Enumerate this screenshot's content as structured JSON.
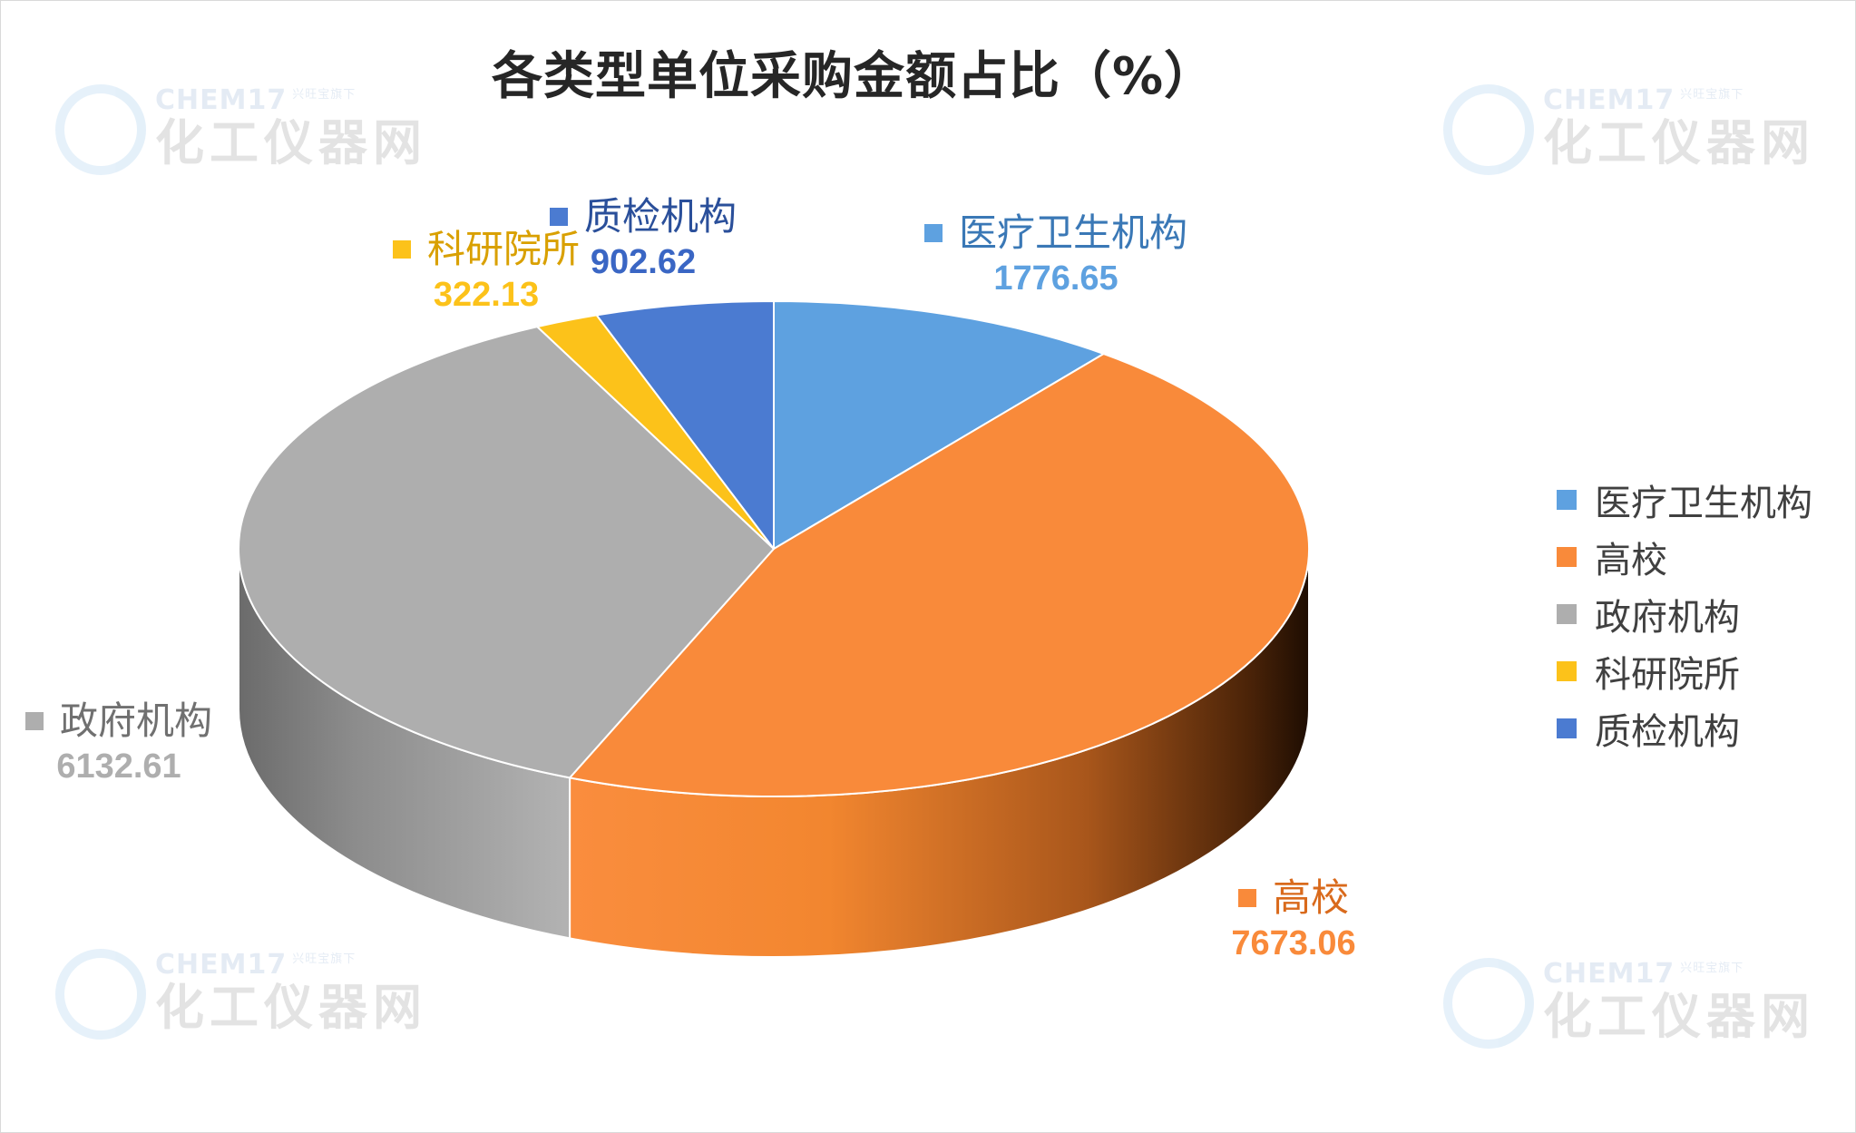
{
  "watermark": {
    "brand": "CHEM17",
    "tagline": "兴旺宝旗下",
    "name": "化工仪器网"
  },
  "chart_data": {
    "type": "pie",
    "style": "3d",
    "title": "各类型单位采购金额占比（%）",
    "categories": [
      "医疗卫生机构",
      "高校",
      "政府机构",
      "科研院所",
      "质检机构"
    ],
    "values": [
      1776.65,
      7673.06,
      6132.61,
      322.13,
      902.62
    ],
    "value_labels": [
      "1776.65",
      "7673.06",
      "6132.61",
      "322.13",
      "902.62"
    ],
    "colors": [
      "#5ea1e0",
      "#f98a3a",
      "#aeaeae",
      "#fcc21a",
      "#4b7bd1"
    ],
    "legend_placement": "right"
  }
}
